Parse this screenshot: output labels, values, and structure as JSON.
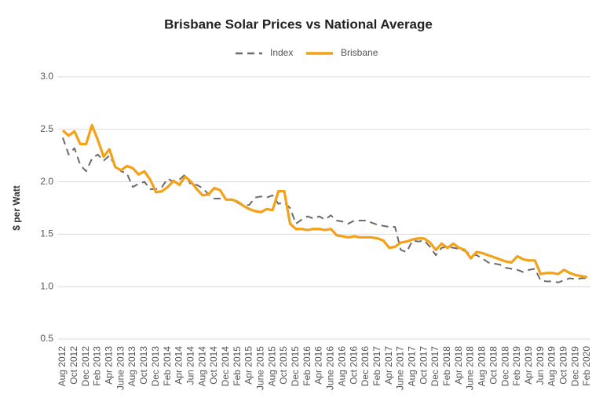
{
  "chart_data": {
    "type": "line",
    "title": "Brisbane Solar Prices vs National Average",
    "y_label": "$ per Watt",
    "categories": [
      "Aug 2012",
      null,
      "Oct 2012",
      null,
      "Dec 2012",
      null,
      "Feb 2013",
      null,
      "Apr 2013",
      null,
      "June 2013",
      null,
      "Aug 2013",
      null,
      "Oct 2013",
      null,
      "Dec 2013",
      null,
      "Feb 2014",
      null,
      "Apr 2014",
      null,
      "Jun 2014",
      null,
      "Aug 2014",
      null,
      "Oct 2014",
      null,
      "Dec 2014",
      null,
      "Feb 2015",
      null,
      "Apr 2015",
      null,
      "June 2015",
      null,
      "Aug 2015",
      null,
      "Oct 2015",
      null,
      "Dec 2015",
      null,
      "Feb 2016",
      null,
      "Apr 2016",
      null,
      "June 2016",
      null,
      "Aug 2016",
      null,
      "Oct 2016",
      null,
      "Dec 2016",
      null,
      "Feb 2017",
      null,
      "Apr 2017",
      null,
      "June 2017",
      null,
      "Aug 2017",
      null,
      "Oct 2017",
      null,
      "Dec 2017",
      null,
      "Feb 2018",
      null,
      "Apr 2018",
      null,
      "June 2018",
      null,
      "Aug 2018",
      null,
      "Oct 2018",
      null,
      "Dec 2018",
      null,
      "Feb 2019",
      null,
      "Apr 2019",
      null,
      "Jun 2019",
      null,
      "Aug 2019",
      null,
      "Oct 2019",
      null,
      "Dec 2019",
      null,
      "Feb 2020"
    ],
    "series": [
      {
        "name": "Index",
        "color": "#6b6b6b",
        "dashed": true,
        "values": [
          2.42,
          2.26,
          2.32,
          2.16,
          2.1,
          2.22,
          2.26,
          2.2,
          2.25,
          2.15,
          2.1,
          2.08,
          1.95,
          1.98,
          2.0,
          1.93,
          1.93,
          1.95,
          2.03,
          2.0,
          2.02,
          2.07,
          1.97,
          1.97,
          1.94,
          1.88,
          1.84,
          1.84,
          1.83,
          1.83,
          1.8,
          1.77,
          1.78,
          1.85,
          1.86,
          1.85,
          1.87,
          1.79,
          1.8,
          1.75,
          1.6,
          1.64,
          1.67,
          1.65,
          1.67,
          1.64,
          1.68,
          1.63,
          1.62,
          1.6,
          1.63,
          1.63,
          1.63,
          1.61,
          1.59,
          1.58,
          1.57,
          1.57,
          1.35,
          1.33,
          1.44,
          1.43,
          1.44,
          1.38,
          1.3,
          1.37,
          1.38,
          1.37,
          1.36,
          1.34,
          1.31,
          1.3,
          1.27,
          1.23,
          1.22,
          1.21,
          1.18,
          1.17,
          1.16,
          1.14,
          1.16,
          1.17,
          1.06,
          1.05,
          1.05,
          1.04,
          1.06,
          1.08,
          1.07,
          1.08,
          1.08
        ]
      },
      {
        "name": "Brisbane",
        "color": "#f3a116",
        "dashed": false,
        "values": [
          2.49,
          2.44,
          2.48,
          2.36,
          2.36,
          2.54,
          2.4,
          2.24,
          2.31,
          2.14,
          2.11,
          2.15,
          2.13,
          2.07,
          2.1,
          2.02,
          1.9,
          1.91,
          1.95,
          2.01,
          1.97,
          2.05,
          2.0,
          1.93,
          1.87,
          1.88,
          1.94,
          1.92,
          1.83,
          1.83,
          1.81,
          1.77,
          1.74,
          1.72,
          1.71,
          1.74,
          1.73,
          1.91,
          1.91,
          1.6,
          1.55,
          1.55,
          1.54,
          1.55,
          1.55,
          1.54,
          1.55,
          1.49,
          1.48,
          1.47,
          1.48,
          1.47,
          1.47,
          1.47,
          1.46,
          1.44,
          1.37,
          1.38,
          1.42,
          1.43,
          1.45,
          1.46,
          1.46,
          1.42,
          1.35,
          1.41,
          1.37,
          1.41,
          1.37,
          1.35,
          1.27,
          1.33,
          1.32,
          1.3,
          1.28,
          1.26,
          1.24,
          1.23,
          1.29,
          1.26,
          1.25,
          1.25,
          1.12,
          1.13,
          1.13,
          1.12,
          1.16,
          1.13,
          1.11,
          1.1,
          1.09
        ]
      }
    ],
    "ylim": [
      0.5,
      3.0
    ],
    "yticks": [
      0.5,
      {
        "value": 1,
        "label": "1.0"
      },
      1.5,
      {
        "value": 2,
        "label": "2.0"
      },
      2.5,
      {
        "value": 3,
        "label": "3.0"
      }
    ],
    "grid": true,
    "legend": "top"
  }
}
